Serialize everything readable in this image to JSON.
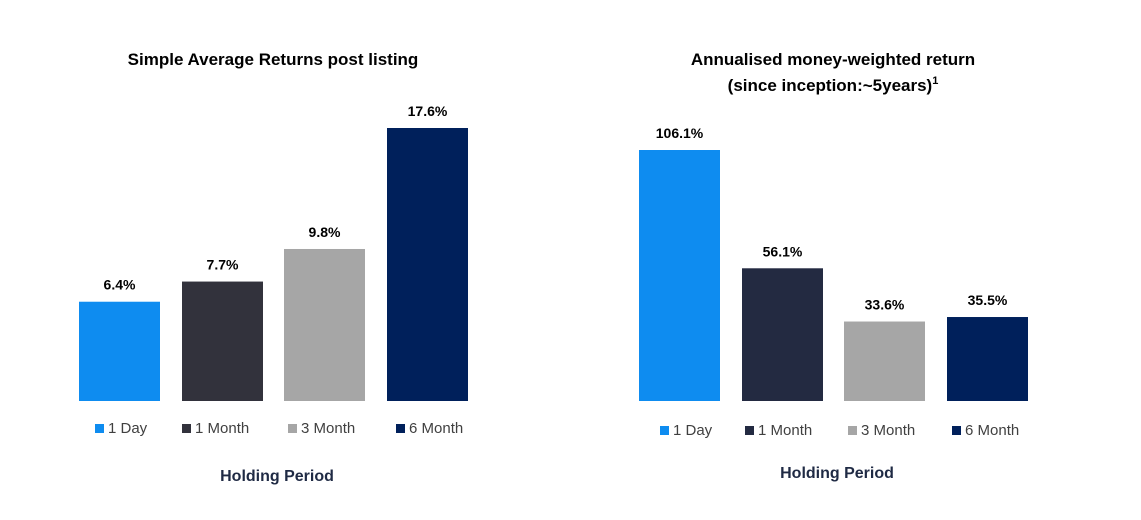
{
  "colors": {
    "title": "#000000",
    "axis_label": "#1f2a44",
    "legend_text": "#404040"
  },
  "chart_data": [
    {
      "type": "bar",
      "title": "Simple Average Returns post listing",
      "xlabel": "Holding Period",
      "ylabel": "",
      "ylim": [
        0,
        17.6
      ],
      "grid": false,
      "legend_position": "bottom",
      "categories": [
        "1 Day",
        "1 Month",
        "3 Month",
        "6 Month"
      ],
      "values": [
        6.4,
        7.7,
        9.8,
        17.6
      ],
      "labels": [
        "6.4%",
        "7.7%",
        "9.8%",
        "17.6%"
      ],
      "colors": [
        "#0e8cf0",
        "#32323c",
        "#a6a6a6",
        "#00205b"
      ]
    },
    {
      "type": "bar",
      "title": "Annualised money-weighted return",
      "title_line2": "(since inception:~5years)",
      "title_sup": "1",
      "xlabel": "Holding Period",
      "ylabel": "",
      "ylim": [
        0,
        106.1
      ],
      "grid": false,
      "legend_position": "bottom",
      "categories": [
        "1 Day",
        "1 Month",
        "3 Month",
        "6 Month"
      ],
      "values": [
        106.1,
        56.1,
        33.6,
        35.5
      ],
      "labels": [
        "106.1%",
        "56.1%",
        "33.6%",
        "35.5%"
      ],
      "colors": [
        "#0e8cf0",
        "#232a41",
        "#a6a6a6",
        "#00205b"
      ]
    }
  ]
}
